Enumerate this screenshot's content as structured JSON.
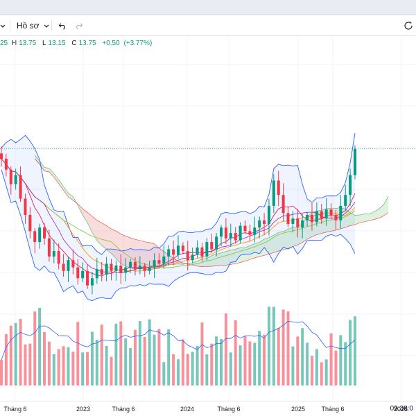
{
  "toolbar": {
    "chevron_icon": "chevron-down-icon",
    "template_label": "Hồ sơ",
    "undo_icon": "undo-icon",
    "redo_icon": "redo-icon",
    "clock_icon": "clock-icon"
  },
  "legend": {
    "open_partial": "25",
    "high_label": "H",
    "high": "13.75",
    "low_label": "L",
    "low": "13.15",
    "close_label": "C",
    "close": "13.75",
    "change": "+0.50",
    "change_pct": "(+3.77%)"
  },
  "time_axis": {
    "labels": [
      "Tháng 6",
      "2023",
      "Tháng 6",
      "2024",
      "Tháng 6",
      "2025",
      "Tháng 6",
      "2026"
    ]
  },
  "status": {
    "clock": "09:38:0"
  },
  "colors": {
    "up": "#089981",
    "down": "#f23645",
    "bollinger": "#2962ff",
    "cloud_up": "#a5d6a7",
    "cloud_down": "#ef9a9a",
    "grid": "#f0f3fa"
  },
  "chart_data": {
    "type": "candlestick",
    "title": "",
    "last_price": 13.75,
    "price_range": [
      5.0,
      16.5
    ],
    "time_labels": [
      "Tháng 6",
      "2023",
      "Tháng 6",
      "2024",
      "Tháng 6",
      "2025",
      "Tháng 6",
      "2026"
    ],
    "close_series": [
      13.2,
      12.6,
      11.8,
      12.3,
      11.0,
      10.1,
      9.2,
      8.6,
      9.4,
      8.8,
      7.8,
      8.1,
      7.4,
      7.0,
      7.6,
      7.2,
      6.6,
      7.0,
      6.2,
      6.6,
      7.1,
      6.8,
      7.4,
      7.0,
      7.3,
      6.9,
      7.2,
      7.5,
      7.1,
      7.3,
      7.0,
      7.2,
      7.6,
      7.4,
      7.8,
      8.2,
      7.9,
      8.4,
      8.1,
      7.6,
      7.9,
      8.3,
      7.8,
      8.6,
      8.2,
      8.9,
      9.4,
      8.8,
      9.1,
      8.7,
      9.5,
      9.2,
      9.0,
      9.4,
      9.8,
      9.6,
      10.6,
      12.0,
      11.2,
      10.2,
      9.6,
      9.9,
      9.4,
      9.8,
      10.1,
      9.7,
      10.3,
      9.9,
      10.4,
      10.1,
      9.8,
      10.6,
      11.2,
      12.3,
      13.75
    ],
    "volume_scale": "relative",
    "indicators": [
      "Bollinger Bands",
      "Ichimoku Cloud",
      "Moving Averages"
    ]
  }
}
